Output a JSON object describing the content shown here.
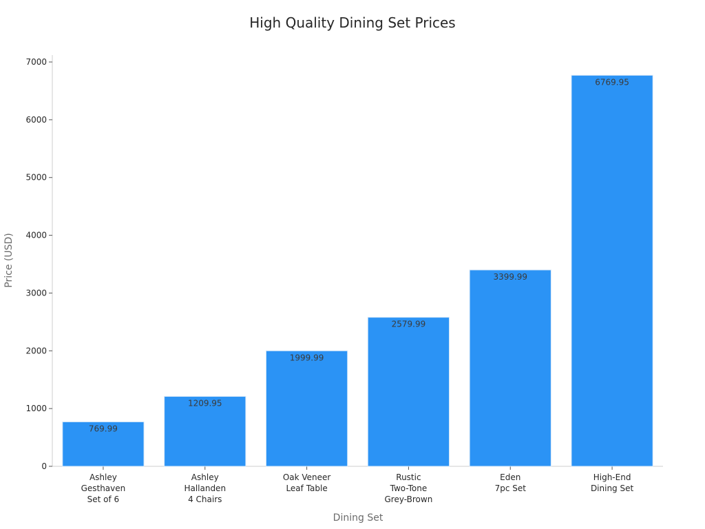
{
  "chart_data": {
    "type": "bar",
    "title": "High Quality Dining Set Prices",
    "xlabel": "Dining Set",
    "ylabel": "Price (USD)",
    "categories": [
      [
        "Ashley",
        "Gesthaven",
        "Set of 6"
      ],
      [
        "Ashley",
        "Hallanden",
        "4 Chairs"
      ],
      [
        "Oak Veneer",
        "Leaf Table"
      ],
      [
        "Rustic",
        "Two-Tone",
        "Grey-Brown"
      ],
      [
        "Eden",
        "7pc Set"
      ],
      [
        "High-End",
        "Dining Set"
      ]
    ],
    "values": [
      769.99,
      1209.95,
      1999.99,
      2579.99,
      3399.99,
      6769.95
    ],
    "value_labels": [
      "769.99",
      "1209.95",
      "1999.99",
      "2579.99",
      "3399.99",
      "6769.95"
    ],
    "ylim": [
      0,
      7000
    ],
    "yticks": [
      0,
      1000,
      2000,
      3000,
      4000,
      5000,
      6000,
      7000
    ],
    "grid": false,
    "legend": "none",
    "bar_color": "#2b93f5",
    "bar_edge_color": "#d8e8f8"
  }
}
